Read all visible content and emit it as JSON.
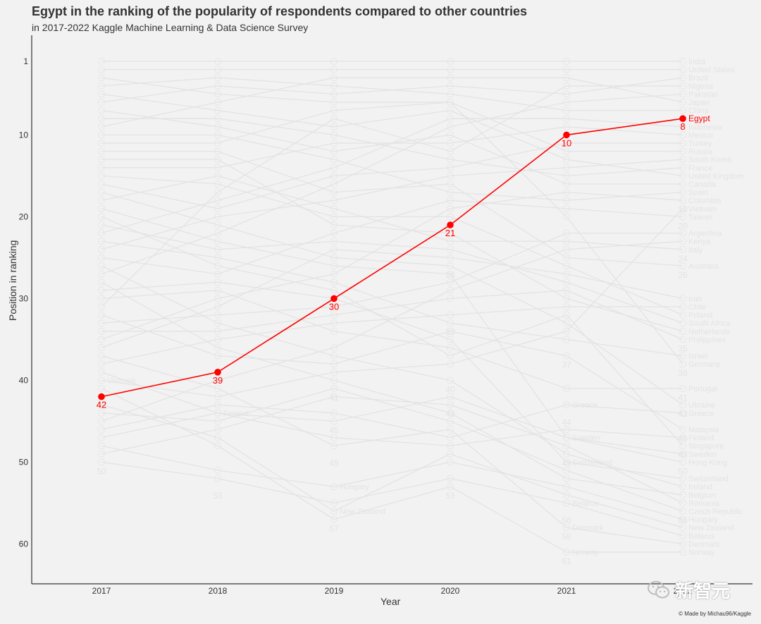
{
  "chart_data": {
    "type": "line",
    "title": "Egypt in the ranking of the popularity of respondents compared to other countries",
    "subtitle": "in 2017-2022 Kaggle Machine Learning & Data Science Survey",
    "xlabel": "Year",
    "ylabel": "Position in ranking",
    "x": [
      "2017",
      "2018",
      "2019",
      "2020",
      "2021",
      "2022"
    ],
    "y_ticks": [
      1,
      10,
      20,
      30,
      40,
      50,
      60
    ],
    "ylim": [
      62,
      -2
    ],
    "y_reversed": true,
    "grid": false,
    "highlight": {
      "name": "Egypt",
      "values": [
        42,
        39,
        30,
        21,
        10,
        8
      ],
      "color": "#ff0000"
    },
    "background_color": "#e3e3e3",
    "background_series": [
      {
        "name": "India",
        "values": [
          1,
          1,
          1,
          1,
          1,
          1
        ]
      },
      {
        "name": "United States",
        "values": [
          2,
          2,
          2,
          2,
          2,
          2
        ]
      },
      {
        "name": "Brazil",
        "values": [
          6,
          4,
          5,
          4,
          5,
          3
        ]
      },
      {
        "name": "Nigeria",
        "values": [
          31,
          17,
          8,
          12,
          4,
          4
        ]
      },
      {
        "name": "Pakistan",
        "values": [
          27,
          22,
          16,
          9,
          6,
          5
        ]
      },
      {
        "name": "Japan",
        "values": [
          9,
          6,
          3,
          3,
          3,
          6
        ]
      },
      {
        "name": "China",
        "values": [
          4,
          3,
          4,
          5,
          7,
          7
        ]
      },
      {
        "name": "Indonesia",
        "values": [
          22,
          18,
          14,
          8,
          8,
          9
        ]
      },
      {
        "name": "Mexico",
        "values": [
          14,
          14,
          11,
          11,
          9,
          10
        ]
      },
      {
        "name": "Turkey",
        "values": [
          16,
          19,
          15,
          14,
          11,
          11
        ]
      },
      {
        "name": "Russia",
        "values": [
          3,
          5,
          6,
          6,
          12,
          12
        ]
      },
      {
        "name": "South Korea",
        "values": [
          24,
          20,
          18,
          15,
          14,
          13
        ]
      },
      {
        "name": "France",
        "values": [
          8,
          8,
          10,
          13,
          15,
          14
        ]
      },
      {
        "name": "United Kingdom",
        "values": [
          5,
          7,
          9,
          7,
          13,
          15
        ]
      },
      {
        "name": "Canada",
        "values": [
          7,
          9,
          12,
          10,
          16,
          16
        ]
      },
      {
        "name": "Spain",
        "values": [
          10,
          10,
          13,
          17,
          18,
          17
        ]
      },
      {
        "name": "Colombia",
        "values": [
          35,
          30,
          27,
          19,
          17,
          18
        ]
      },
      {
        "name": "Taiwan",
        "values": [
          25,
          27,
          22,
          18,
          19,
          20
        ]
      },
      {
        "name": "Argentina",
        "values": [
          33,
          32,
          31,
          28,
          22,
          22
        ]
      },
      {
        "name": "Kenya",
        "values": [
          45,
          40,
          36,
          29,
          24,
          23
        ]
      },
      {
        "name": "Italy",
        "values": [
          18,
          15,
          19,
          23,
          23,
          24
        ]
      },
      {
        "name": "Australia",
        "values": [
          12,
          12,
          17,
          16,
          25,
          26
        ]
      },
      {
        "name": "Iran",
        "values": [
          36,
          31,
          24,
          25,
          27,
          30
        ]
      },
      {
        "name": "Chile",
        "values": [
          38,
          35,
          33,
          32,
          31,
          31
        ]
      },
      {
        "name": "Poland",
        "values": [
          15,
          16,
          20,
          20,
          26,
          32
        ]
      },
      {
        "name": "South Africa",
        "values": [
          21,
          24,
          23,
          24,
          28,
          33
        ]
      },
      {
        "name": "Netherlands",
        "values": [
          13,
          13,
          21,
          22,
          30,
          34
        ]
      },
      {
        "name": "Philippines",
        "values": [
          34,
          34,
          32,
          30,
          29,
          35
        ]
      },
      {
        "name": "Israel",
        "values": [
          23,
          25,
          28,
          33,
          35,
          37
        ]
      },
      {
        "name": "Germany",
        "values": [
          11,
          11,
          7,
          6,
          20,
          38
        ]
      },
      {
        "name": "Portugal",
        "values": [
          30,
          29,
          34,
          36,
          41,
          41
        ]
      },
      {
        "name": "Ukraine",
        "values": [
          17,
          21,
          25,
          26,
          33,
          43
        ]
      },
      {
        "name": "Malaysia",
        "values": [
          32,
          37,
          38,
          34,
          37,
          46
        ]
      },
      {
        "name": "Singapore",
        "values": [
          20,
          26,
          29,
          37,
          32,
          48
        ]
      },
      {
        "name": "Hong Kong",
        "values": [
          39,
          44,
          45,
          42,
          47,
          50
        ]
      },
      {
        "name": "Ireland",
        "values": [
          26,
          33,
          37,
          40,
          49,
          53
        ]
      },
      {
        "name": "Belgium",
        "values": [
          28,
          36,
          40,
          44,
          52,
          54
        ]
      },
      {
        "name": "Romania",
        "values": [
          49,
          46,
          42,
          43,
          48,
          55
        ]
      },
      {
        "name": "Czech Republic",
        "values": [
          44,
          45,
          41,
          45,
          51,
          56
        ]
      },
      {
        "name": "Vietnam",
        "values": [
          40,
          42,
          39,
          38,
          34,
          19
        ]
      },
      {
        "name": "Greece",
        "values": [
          46,
          43,
          44,
          47,
          43,
          44
        ]
      },
      {
        "name": "Finland",
        "values": [
          47,
          44,
          47,
          48,
          46,
          47
        ]
      },
      {
        "name": "Sweden",
        "values": [
          19,
          23,
          26,
          27,
          47,
          49
        ]
      },
      {
        "name": "Switzerland",
        "values": [
          29,
          28,
          30,
          35,
          50,
          52
        ]
      },
      {
        "name": "Hungary",
        "values": [
          48,
          51,
          53,
          50,
          53,
          57
        ]
      },
      {
        "name": "New Zealand",
        "values": [
          43,
          47,
          56,
          49,
          54,
          58
        ]
      },
      {
        "name": "Belarus",
        "values": [
          50,
          52,
          55,
          52,
          55,
          59
        ]
      },
      {
        "name": "Denmark",
        "values": [
          37,
          41,
          48,
          46,
          58,
          60
        ]
      },
      {
        "name": "Norway",
        "values": [
          41,
          48,
          57,
          53,
          61,
          61
        ]
      }
    ],
    "visible_rank_numbers": {
      "2017": [
        42,
        50
      ],
      "2018": [
        39,
        53
      ],
      "2019": [
        30,
        41,
        45,
        49,
        57
      ],
      "2020": [
        21,
        26,
        33,
        40,
        43,
        53
      ],
      "2021": [
        10,
        37,
        44,
        49,
        56,
        58,
        61
      ],
      "2022": [
        8,
        18,
        20,
        24,
        26,
        35,
        38,
        41,
        43,
        46,
        48,
        50,
        56
      ]
    },
    "visible_name_labels": {
      "2017": [
        "Vietnam"
      ],
      "2018": [
        "Finland"
      ],
      "2019": [
        "Hungary",
        "New Zealand"
      ],
      "2021": [
        "Greece",
        "Sweden",
        "Switzerland",
        "Belarus",
        "Denmark",
        "Norway"
      ]
    }
  },
  "credit": "© Made by Michau96/Kaggle",
  "watermark": "新智元",
  "watermark_icon": "wechat-icon"
}
